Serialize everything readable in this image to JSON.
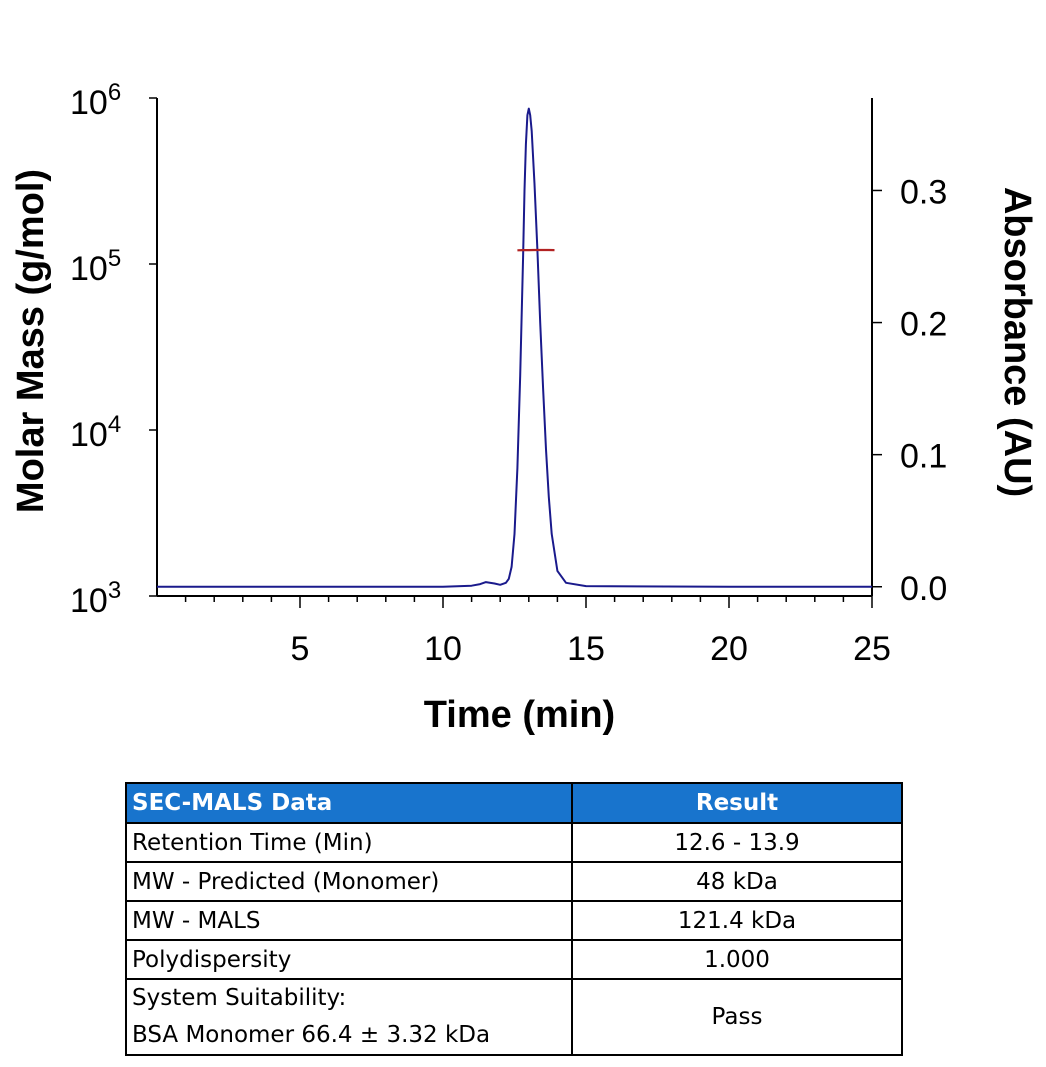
{
  "chart_data": {
    "type": "line",
    "xlabel": "Time (min)",
    "ylabel_left": "Molar Mass (g/mol)",
    "ylabel_right": "Absorbance (AU)",
    "xlim": [
      0,
      25
    ],
    "x_ticks": [
      5,
      10,
      15,
      20,
      25
    ],
    "y_left_scale": "log",
    "y_left_lim": [
      1000,
      1000000
    ],
    "y_left_ticks": [
      {
        "base": "10",
        "exp": "3"
      },
      {
        "base": "10",
        "exp": "4"
      },
      {
        "base": "10",
        "exp": "5"
      },
      {
        "base": "10",
        "exp": "6"
      }
    ],
    "y_right_lim": [
      -0.007,
      0.37
    ],
    "y_right_ticks": [
      "0.0",
      "0.1",
      "0.2",
      "0.3"
    ],
    "grid": false,
    "series": [
      {
        "axis": "right",
        "color": "#1a1a8c",
        "x": [
          0,
          5,
          10,
          11.0,
          11.3,
          11.5,
          11.8,
          12.0,
          12.2,
          12.3,
          12.4,
          12.5,
          12.6,
          12.7,
          12.8,
          12.85,
          12.9,
          12.95,
          13.0,
          13.05,
          13.1,
          13.2,
          13.3,
          13.4,
          13.5,
          13.6,
          13.7,
          13.8,
          14.0,
          14.3,
          15,
          20,
          24,
          25
        ],
        "y": [
          0.0,
          0.0,
          0.0,
          0.0008,
          0.002,
          0.0035,
          0.0025,
          0.0015,
          0.003,
          0.006,
          0.015,
          0.04,
          0.09,
          0.16,
          0.25,
          0.3,
          0.335,
          0.357,
          0.362,
          0.357,
          0.345,
          0.305,
          0.255,
          0.2,
          0.15,
          0.104,
          0.068,
          0.04,
          0.012,
          0.003,
          0.0005,
          0.0,
          0.0,
          0.0
        ]
      },
      {
        "axis": "left",
        "color": "#b22222",
        "x": [
          12.6,
          12.8,
          13.0,
          13.2,
          13.4,
          13.5,
          13.6,
          13.7,
          13.9
        ],
        "y": [
          121000,
          121200,
          121300,
          121400,
          121500,
          121450,
          121400,
          121350,
          121300
        ]
      }
    ]
  },
  "table": {
    "headers": [
      "SEC-MALS Data",
      "Result"
    ],
    "rows": [
      {
        "label": "Retention Time (Min)",
        "value": "12.6 - 13.9"
      },
      {
        "label": "MW - Predicted (Monomer)",
        "value": "48 kDa"
      },
      {
        "label": "MW - MALS",
        "value": "121.4 kDa"
      },
      {
        "label": "Polydispersity",
        "value": "1.000"
      },
      {
        "label_lines": [
          "System Suitability:",
          "BSA Monomer 66.4 ± 3.32 kDa"
        ],
        "value": "Pass"
      }
    ],
    "header_color": "#1874cd"
  }
}
